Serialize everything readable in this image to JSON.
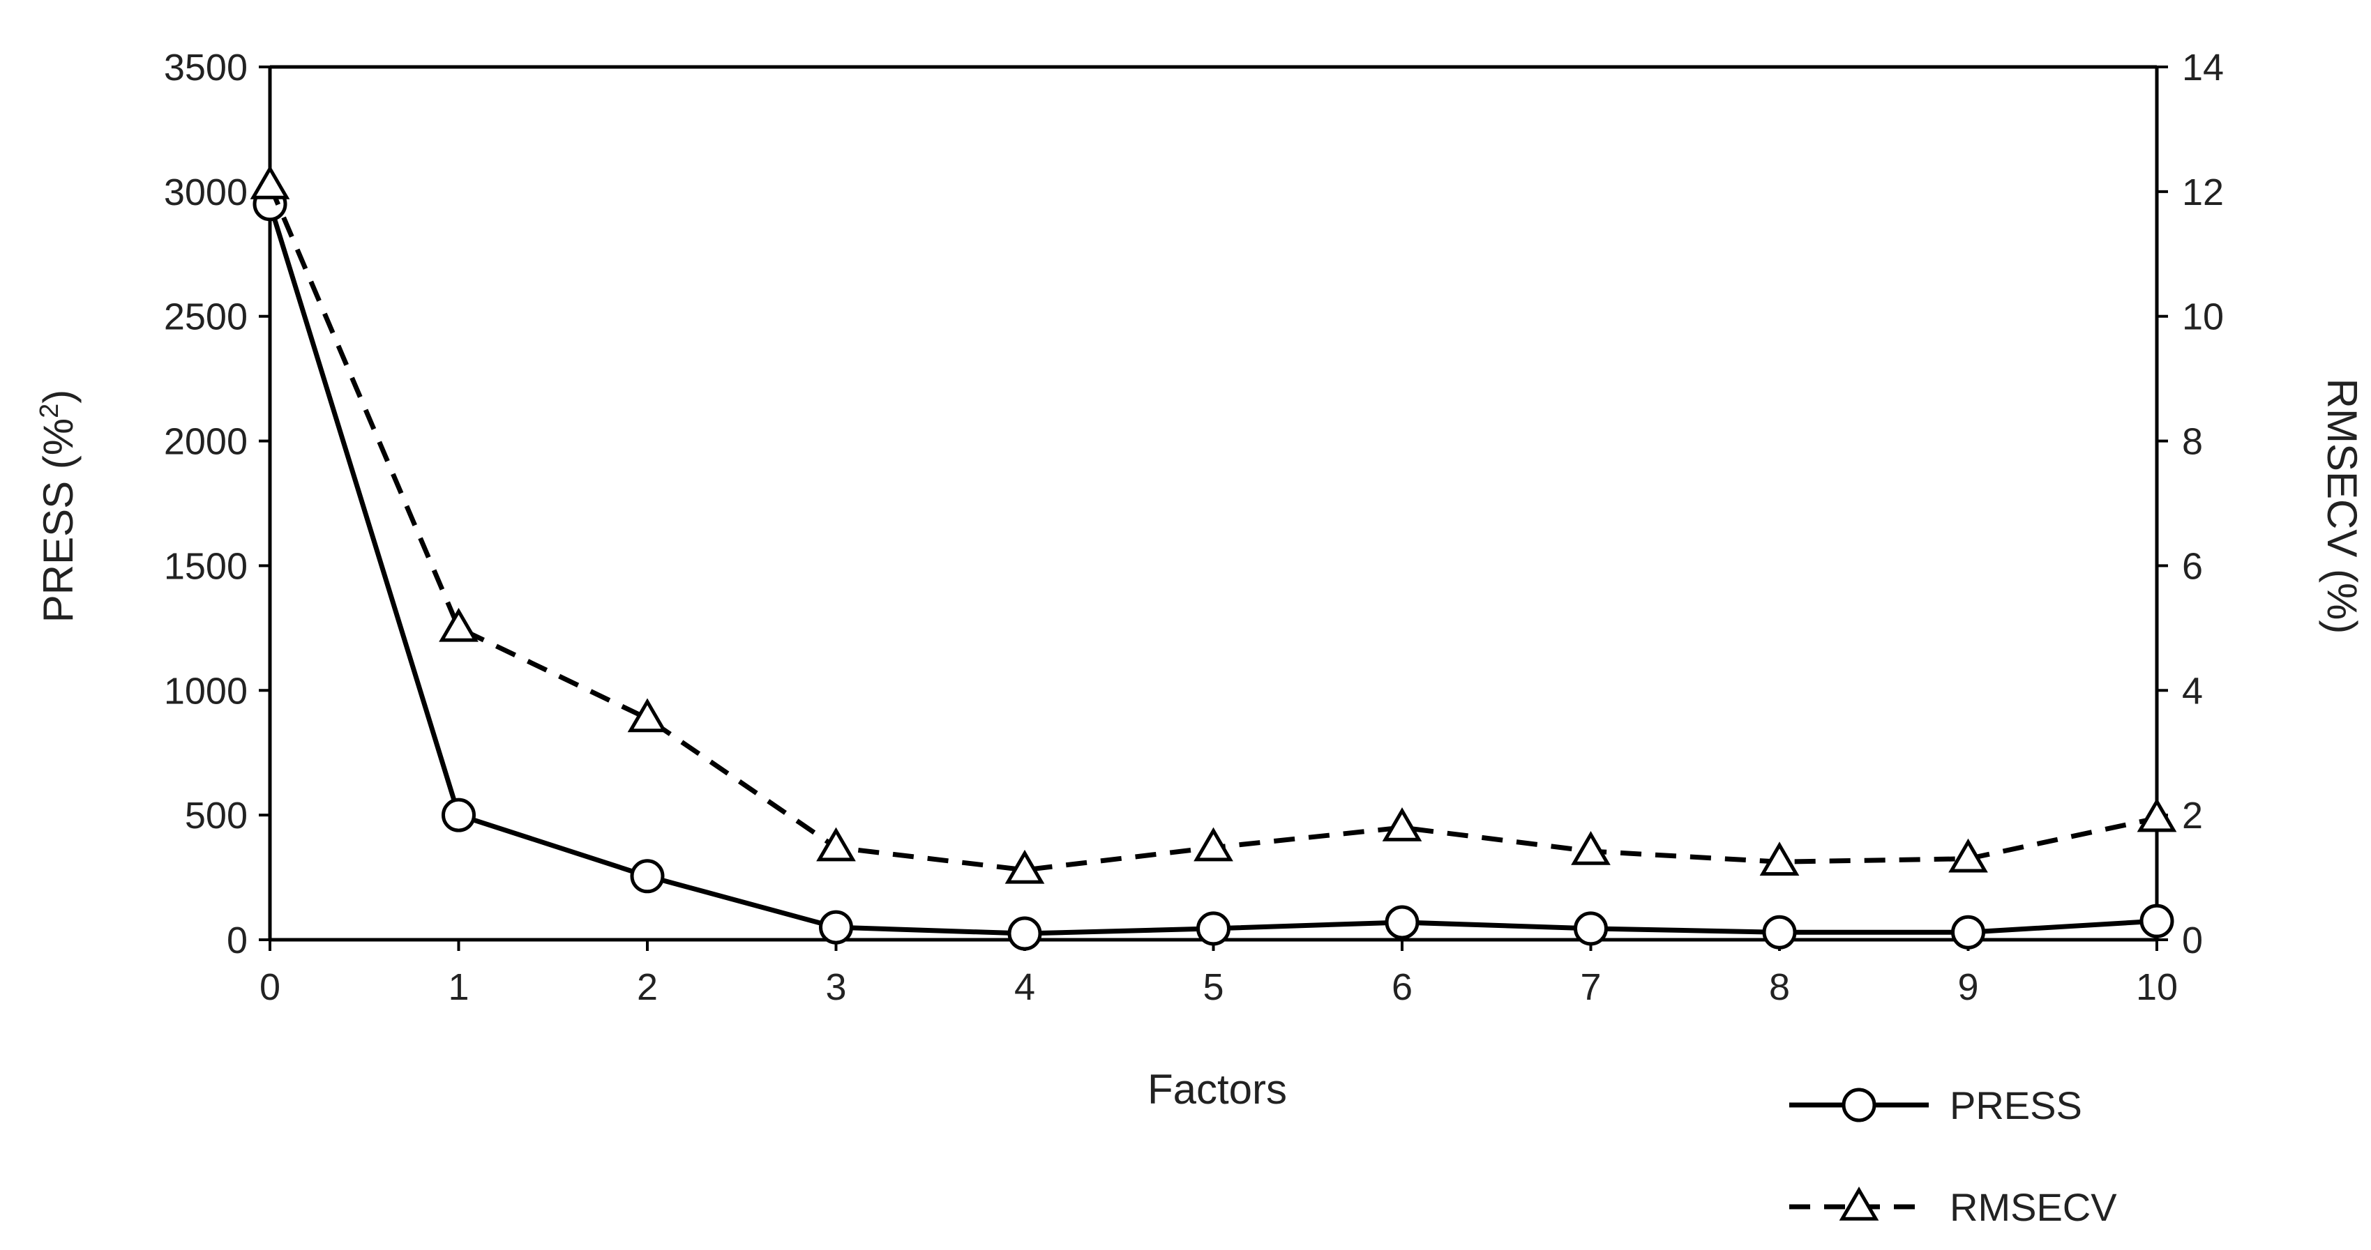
{
  "chart_data": {
    "type": "line",
    "title": "",
    "xlabel": "Factors",
    "ylabel_left_base": "PRESS (%",
    "ylabel_left_sup": "2",
    "ylabel_left_close": ")",
    "ylabel_right": "RMSECV (%)",
    "x": [
      0,
      1,
      2,
      3,
      4,
      5,
      6,
      7,
      8,
      9,
      10
    ],
    "x_ticks": [
      "0",
      "1",
      "2",
      "3",
      "4",
      "5",
      "6",
      "7",
      "8",
      "9",
      "10"
    ],
    "xlim": [
      0,
      10
    ],
    "y_left_lim": [
      0,
      3500
    ],
    "y_left_ticks": [
      0,
      500,
      1000,
      1500,
      2000,
      2500,
      3000,
      3500
    ],
    "y_right_lim": [
      0,
      14
    ],
    "y_right_ticks": [
      0,
      2,
      4,
      6,
      8,
      10,
      12,
      14
    ],
    "grid": false,
    "legend_position": "bottom-right",
    "series": [
      {
        "name": "PRESS",
        "axis": "left",
        "line_style": "solid",
        "marker": "circle",
        "color": "#000000",
        "values": [
          2950,
          500,
          255,
          50,
          25,
          45,
          70,
          45,
          30,
          30,
          75
        ]
      },
      {
        "name": "RMSECV",
        "axis": "right",
        "line_style": "dashed",
        "marker": "triangle",
        "color": "#000000",
        "values": [
          12.1,
          5.0,
          3.55,
          1.48,
          1.12,
          1.48,
          1.8,
          1.42,
          1.25,
          1.3,
          1.95
        ]
      }
    ]
  }
}
